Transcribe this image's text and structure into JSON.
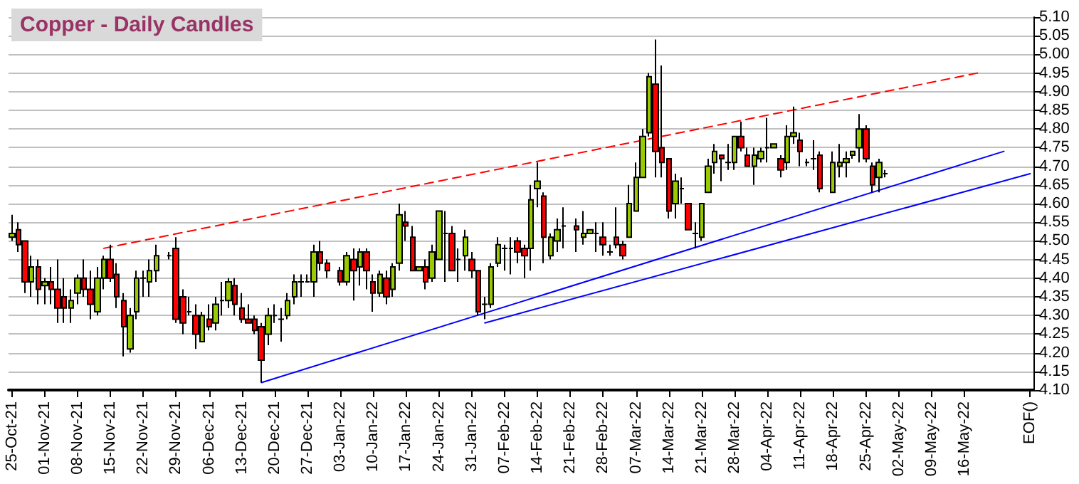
{
  "chart_data": {
    "type": "candlestick",
    "title": "Copper - Daily Candles",
    "categories": [
      "25-Oct-21",
      null,
      null,
      null,
      null,
      "01-Nov-21",
      null,
      null,
      null,
      null,
      "08-Nov-21",
      null,
      null,
      null,
      null,
      "15-Nov-21",
      null,
      null,
      null,
      null,
      "22-Nov-21",
      null,
      null,
      null,
      null,
      "29-Nov-21",
      null,
      null,
      null,
      null,
      "06-Dec-21",
      null,
      null,
      null,
      null,
      "13-Dec-21",
      null,
      null,
      null,
      null,
      "20-Dec-21",
      null,
      null,
      null,
      null,
      "27-Dec-21",
      null,
      null,
      null,
      null,
      "03-Jan-22",
      null,
      null,
      null,
      null,
      "10-Jan-22",
      null,
      null,
      null,
      null,
      "17-Jan-22",
      null,
      null,
      null,
      null,
      "24-Jan-22",
      null,
      null,
      null,
      null,
      "31-Jan-22",
      null,
      null,
      null,
      null,
      "07-Feb-22",
      null,
      null,
      null,
      null,
      "14-Feb-22",
      null,
      null,
      null,
      null,
      "21-Feb-22",
      null,
      null,
      null,
      null,
      "28-Feb-22",
      null,
      null,
      null,
      null,
      "07-Mar-22",
      null,
      null,
      null,
      null,
      "14-Mar-22",
      null,
      null,
      null,
      null,
      "21-Mar-22",
      null,
      null,
      null,
      null,
      "28-Mar-22",
      null,
      null,
      null,
      null,
      "04-Apr-22",
      null,
      null,
      null,
      null,
      "11-Apr-22",
      null,
      null,
      null,
      null,
      "18-Apr-22",
      null,
      null,
      null,
      null,
      "25-Apr-22",
      null,
      null,
      null,
      null,
      "02-May-22",
      null,
      null,
      null,
      null,
      "09-May-22",
      null,
      null,
      null,
      null,
      "16-May-22",
      null,
      null,
      null,
      null,
      null,
      null,
      null,
      null,
      null,
      "EOF()"
    ],
    "ohlc": [
      [
        4.51,
        4.57,
        4.5,
        4.52
      ],
      [
        4.53,
        4.55,
        4.47,
        4.49
      ],
      [
        4.5,
        4.5,
        4.36,
        4.39
      ],
      [
        4.39,
        4.46,
        4.35,
        4.43
      ],
      [
        4.43,
        4.45,
        4.33,
        4.37
      ],
      [
        4.38,
        4.4,
        4.33,
        4.39
      ],
      [
        4.39,
        4.43,
        4.33,
        4.37
      ],
      [
        4.37,
        4.45,
        4.28,
        4.32
      ],
      [
        4.35,
        4.4,
        4.28,
        4.32
      ],
      [
        4.32,
        4.37,
        4.28,
        4.34
      ],
      [
        4.36,
        4.41,
        4.33,
        4.4
      ],
      [
        4.4,
        4.45,
        4.35,
        4.37
      ],
      [
        4.37,
        4.42,
        4.29,
        4.33
      ],
      [
        4.31,
        4.43,
        4.3,
        4.4
      ],
      [
        4.4,
        4.46,
        4.37,
        4.45
      ],
      [
        4.45,
        4.49,
        4.39,
        4.4
      ],
      [
        4.41,
        4.44,
        4.32,
        4.35
      ],
      [
        4.34,
        4.36,
        4.19,
        4.27
      ],
      [
        4.21,
        4.32,
        4.2,
        4.3
      ],
      [
        4.31,
        4.42,
        4.29,
        4.4
      ],
      [
        4.4,
        4.42,
        4.35,
        4.4
      ],
      [
        4.39,
        4.45,
        4.35,
        4.42
      ],
      [
        4.42,
        4.49,
        4.39,
        4.46
      ],
      null,
      [
        4.46,
        4.47,
        4.45,
        4.46
      ],
      [
        4.48,
        4.51,
        4.28,
        4.29
      ],
      [
        4.35,
        4.37,
        4.25,
        4.28
      ],
      [
        4.31,
        4.35,
        4.3,
        4.31
      ],
      [
        4.3,
        4.33,
        4.21,
        4.25
      ],
      [
        4.23,
        4.31,
        4.23,
        4.3
      ],
      [
        4.29,
        4.33,
        4.26,
        4.27
      ],
      [
        4.28,
        4.35,
        4.26,
        4.33
      ],
      [
        4.34,
        4.39,
        4.3,
        4.34
      ],
      [
        4.34,
        4.4,
        4.32,
        4.39
      ],
      [
        4.38,
        4.4,
        4.3,
        4.33
      ],
      [
        4.32,
        4.36,
        4.28,
        4.29
      ],
      [
        4.29,
        4.33,
        4.28,
        4.28
      ],
      [
        4.29,
        4.3,
        4.25,
        4.26
      ],
      [
        4.27,
        4.28,
        4.12,
        4.18
      ],
      [
        4.25,
        4.32,
        4.22,
        4.3
      ],
      [
        4.3,
        4.33,
        4.28,
        4.3
      ],
      [
        4.29,
        4.32,
        4.23,
        4.29
      ],
      [
        4.3,
        4.36,
        4.29,
        4.34
      ],
      [
        4.35,
        4.41,
        4.33,
        4.39
      ],
      [
        4.39,
        4.41,
        4.35,
        4.39
      ],
      [
        4.39,
        4.41,
        4.39,
        4.39
      ],
      [
        4.39,
        4.49,
        4.35,
        4.47
      ],
      [
        4.47,
        4.5,
        4.42,
        4.44
      ],
      [
        4.44,
        4.45,
        4.4,
        4.42
      ],
      null,
      [
        4.42,
        4.43,
        4.38,
        4.39
      ],
      [
        4.39,
        4.47,
        4.38,
        4.46
      ],
      [
        4.45,
        4.48,
        4.34,
        4.42
      ],
      [
        4.43,
        4.48,
        4.38,
        4.47
      ],
      [
        4.47,
        4.48,
        4.37,
        4.42
      ],
      [
        4.39,
        4.41,
        4.31,
        4.36
      ],
      [
        4.36,
        4.42,
        4.35,
        4.41
      ],
      [
        4.4,
        4.42,
        4.33,
        4.35
      ],
      [
        4.37,
        4.44,
        4.35,
        4.43
      ],
      [
        4.44,
        4.6,
        4.42,
        4.57
      ],
      [
        4.55,
        4.58,
        4.5,
        4.54
      ],
      [
        4.51,
        4.54,
        4.42,
        4.42
      ],
      [
        4.42,
        4.43,
        4.42,
        4.43
      ],
      [
        4.43,
        4.45,
        4.37,
        4.39
      ],
      [
        4.4,
        4.49,
        4.39,
        4.47
      ],
      [
        4.45,
        4.58,
        4.45,
        4.58
      ],
      [
        4.52,
        4.58,
        4.39,
        4.52
      ],
      [
        4.52,
        4.54,
        4.42,
        4.42
      ],
      [
        4.45,
        4.48,
        4.39,
        4.45
      ],
      [
        4.46,
        4.53,
        4.42,
        4.51
      ],
      [
        4.45,
        4.47,
        4.4,
        4.42
      ],
      [
        4.42,
        4.42,
        4.3,
        4.31
      ],
      [
        4.33,
        4.35,
        4.29,
        4.33
      ],
      [
        4.33,
        4.44,
        4.32,
        4.43
      ],
      [
        4.44,
        4.51,
        4.43,
        4.49
      ],
      [
        4.48,
        4.49,
        4.42,
        4.48
      ],
      [
        4.48,
        4.51,
        4.41,
        4.48
      ],
      [
        4.5,
        4.51,
        4.44,
        4.47
      ],
      [
        4.48,
        4.49,
        4.4,
        4.46
      ],
      [
        4.48,
        4.65,
        4.42,
        4.61
      ],
      [
        4.64,
        4.71,
        4.59,
        4.66
      ],
      [
        4.62,
        4.63,
        4.44,
        4.51
      ],
      [
        4.46,
        4.52,
        4.45,
        4.51
      ],
      [
        4.5,
        4.56,
        4.47,
        4.53
      ],
      [
        4.54,
        4.59,
        4.48,
        4.54
      ],
      null,
      [
        4.54,
        4.56,
        4.47,
        4.53
      ],
      [
        4.51,
        4.58,
        4.49,
        4.52
      ],
      [
        4.52,
        4.53,
        4.52,
        4.53
      ],
      [
        4.52,
        4.55,
        4.47,
        4.52
      ],
      [
        4.51,
        4.55,
        4.46,
        4.49
      ],
      [
        4.47,
        4.49,
        4.46,
        4.47
      ],
      [
        4.51,
        4.59,
        4.48,
        4.49
      ],
      [
        4.49,
        4.5,
        4.45,
        4.46
      ],
      [
        4.51,
        4.65,
        4.51,
        4.6
      ],
      [
        4.58,
        4.71,
        4.58,
        4.67
      ],
      [
        4.67,
        4.8,
        4.67,
        4.78
      ],
      [
        4.79,
        4.95,
        4.78,
        4.94
      ],
      [
        4.92,
        5.04,
        4.67,
        4.74
      ],
      [
        4.75,
        4.97,
        4.67,
        4.71
      ],
      [
        4.72,
        4.72,
        4.56,
        4.58
      ],
      [
        4.6,
        4.68,
        4.56,
        4.66
      ],
      [
        4.64,
        4.67,
        4.6,
        4.64
      ],
      [
        4.6,
        4.6,
        4.53,
        4.53
      ],
      [
        4.52,
        4.55,
        4.48,
        4.52
      ],
      [
        4.51,
        4.6,
        4.5,
        4.6
      ],
      [
        4.63,
        4.72,
        4.63,
        4.7
      ],
      [
        4.71,
        4.76,
        4.68,
        4.74
      ],
      [
        4.73,
        4.73,
        4.66,
        4.72
      ],
      [
        4.71,
        4.76,
        4.69,
        4.71
      ],
      [
        4.71,
        4.78,
        4.69,
        4.78
      ],
      [
        4.78,
        4.82,
        4.74,
        4.75
      ],
      [
        4.73,
        4.75,
        4.7,
        4.7
      ],
      [
        4.7,
        4.75,
        4.65,
        4.73
      ],
      [
        4.72,
        4.75,
        4.71,
        4.74
      ],
      [
        4.75,
        4.83,
        4.71,
        4.75
      ],
      [
        4.75,
        4.76,
        4.75,
        4.76
      ],
      [
        4.72,
        4.73,
        4.67,
        4.69
      ],
      [
        4.71,
        4.81,
        4.69,
        4.78
      ],
      [
        4.78,
        4.86,
        4.76,
        4.79
      ],
      [
        4.77,
        4.79,
        4.7,
        4.74
      ],
      [
        4.71,
        4.72,
        4.7,
        4.71
      ],
      [
        4.72,
        4.77,
        4.69,
        4.72
      ],
      [
        4.73,
        4.74,
        4.63,
        4.64
      ],
      null,
      [
        4.63,
        4.74,
        4.63,
        4.71
      ],
      [
        4.7,
        4.76,
        4.67,
        4.71
      ],
      [
        4.71,
        4.74,
        4.67,
        4.72
      ],
      [
        4.73,
        4.74,
        4.72,
        4.74
      ],
      [
        4.75,
        4.84,
        4.71,
        4.8
      ],
      [
        4.8,
        4.81,
        4.71,
        4.72
      ],
      [
        4.7,
        4.71,
        4.63,
        4.65
      ],
      [
        4.67,
        4.72,
        4.63,
        4.71
      ],
      [
        4.68,
        4.69,
        4.67,
        4.68
      ],
      null,
      null,
      null,
      null,
      null,
      null,
      null,
      null,
      null,
      null,
      null,
      null,
      null,
      null,
      null,
      null,
      null,
      null,
      null,
      null,
      null,
      null
    ],
    "series": [
      {
        "type": "line",
        "color": "#ff0000",
        "line_style": "dashed",
        "values": [
          null,
          null,
          null,
          null,
          null,
          null,
          null,
          null,
          null,
          null,
          null,
          null,
          null,
          null,
          4.48,
          null,
          null,
          null,
          null,
          null,
          null,
          null,
          null,
          null,
          null,
          null,
          null,
          null,
          null,
          null,
          null,
          null,
          null,
          null,
          null,
          null,
          null,
          null,
          null,
          null,
          null,
          null,
          null,
          null,
          null,
          null,
          null,
          null,
          null,
          null,
          null,
          null,
          null,
          null,
          null,
          null,
          null,
          null,
          null,
          null,
          null,
          null,
          null,
          null,
          null,
          null,
          null,
          null,
          null,
          null,
          null,
          null,
          null,
          null,
          null,
          null,
          null,
          null,
          null,
          null,
          null,
          null,
          null,
          null,
          null,
          null,
          null,
          null,
          null,
          null,
          null,
          null,
          null,
          null,
          null,
          null,
          null,
          null,
          null,
          null,
          null,
          null,
          null,
          null,
          null,
          null,
          null,
          null,
          null,
          null,
          null,
          null,
          null,
          null,
          null,
          null,
          null,
          null,
          null,
          null,
          null,
          null,
          null,
          null,
          null,
          null,
          null,
          null,
          null,
          null,
          null,
          null,
          null,
          null,
          null,
          null,
          null,
          null,
          null,
          null,
          null,
          null,
          null,
          null,
          null,
          null,
          null,
          4.95,
          null,
          null,
          null,
          null,
          null,
          null,
          null,
          null
        ]
      },
      {
        "type": "line",
        "color": "#0000ff",
        "line_style": "solid",
        "values": [
          null,
          null,
          null,
          null,
          null,
          null,
          null,
          null,
          null,
          null,
          null,
          null,
          null,
          null,
          null,
          null,
          null,
          null,
          null,
          null,
          null,
          null,
          null,
          null,
          null,
          null,
          null,
          null,
          null,
          null,
          null,
          null,
          null,
          null,
          null,
          null,
          null,
          null,
          4.12,
          null,
          null,
          null,
          null,
          null,
          null,
          null,
          null,
          null,
          null,
          null,
          null,
          null,
          null,
          null,
          null,
          null,
          null,
          null,
          null,
          null,
          null,
          null,
          null,
          null,
          null,
          null,
          null,
          null,
          null,
          null,
          null,
          null,
          null,
          null,
          null,
          null,
          null,
          null,
          null,
          null,
          null,
          null,
          null,
          null,
          null,
          null,
          null,
          null,
          null,
          null,
          null,
          null,
          null,
          null,
          null,
          null,
          null,
          null,
          null,
          null,
          null,
          null,
          null,
          null,
          null,
          null,
          null,
          null,
          null,
          null,
          null,
          null,
          null,
          null,
          null,
          null,
          null,
          null,
          null,
          null,
          null,
          null,
          null,
          null,
          null,
          null,
          null,
          null,
          null,
          null,
          null,
          null,
          null,
          null,
          null,
          null,
          null,
          null,
          null,
          null,
          null,
          null,
          null,
          null,
          null,
          null,
          null,
          null,
          null,
          null,
          null,
          4.74,
          null,
          null,
          null,
          null
        ]
      },
      {
        "type": "line",
        "color": "#0000ff",
        "line_style": "solid",
        "values": [
          null,
          null,
          null,
          null,
          null,
          null,
          null,
          null,
          null,
          null,
          null,
          null,
          null,
          null,
          null,
          null,
          null,
          null,
          null,
          null,
          null,
          null,
          null,
          null,
          null,
          null,
          null,
          null,
          null,
          null,
          null,
          null,
          null,
          null,
          null,
          null,
          null,
          null,
          null,
          null,
          null,
          null,
          null,
          null,
          null,
          null,
          null,
          null,
          null,
          null,
          null,
          null,
          null,
          null,
          null,
          null,
          null,
          null,
          null,
          null,
          null,
          null,
          null,
          null,
          null,
          null,
          null,
          null,
          null,
          null,
          null,
          null,
          4.28,
          null,
          null,
          null,
          null,
          null,
          null,
          null,
          null,
          null,
          null,
          null,
          null,
          null,
          null,
          null,
          null,
          null,
          null,
          null,
          null,
          null,
          null,
          null,
          null,
          null,
          null,
          null,
          null,
          null,
          null,
          null,
          null,
          null,
          null,
          null,
          null,
          null,
          null,
          null,
          null,
          null,
          null,
          null,
          null,
          null,
          null,
          null,
          null,
          null,
          null,
          null,
          null,
          null,
          null,
          null,
          null,
          null,
          null,
          null,
          null,
          null,
          null,
          null,
          null,
          null,
          null,
          null,
          null,
          null,
          null,
          null,
          null,
          null,
          null,
          null,
          null,
          null,
          null,
          null,
          null,
          null,
          null,
          4.68
        ]
      }
    ],
    "ylim": [
      4.1,
      5.1
    ],
    "yticks": [
      {
        "value": 4.1,
        "label": "4.10"
      },
      {
        "value": 4.15,
        "label": "4.15"
      },
      {
        "value": 4.2,
        "label": "4.20"
      },
      {
        "value": 4.25,
        "label": "4.25"
      },
      {
        "value": 4.3,
        "label": "4.30"
      },
      {
        "value": 4.35,
        "label": "4.35"
      },
      {
        "value": 4.4,
        "label": "4.40"
      },
      {
        "value": 4.45,
        "label": "4.45"
      },
      {
        "value": 4.5,
        "label": "4.50"
      },
      {
        "value": 4.55,
        "label": "4.55"
      },
      {
        "value": 4.6,
        "label": "4.60"
      },
      {
        "value": 4.65,
        "label": "4.65"
      },
      {
        "value": 4.7,
        "label": "4.70"
      },
      {
        "value": 4.75,
        "label": "4.75"
      },
      {
        "value": 4.8,
        "label": "4.80"
      },
      {
        "value": 4.85,
        "label": "4.85"
      },
      {
        "value": 4.9,
        "label": "4.90"
      },
      {
        "value": 4.95,
        "label": "4.95"
      },
      {
        "value": 5.0,
        "label": "5.00"
      },
      {
        "value": 5.05,
        "label": "5.05"
      },
      {
        "value": 5.1,
        "label": "5.10"
      }
    ],
    "grid": "y"
  }
}
